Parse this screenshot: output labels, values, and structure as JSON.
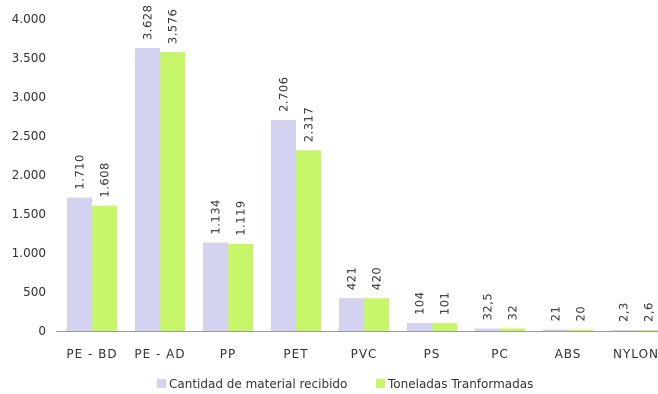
{
  "chart_data": {
    "type": "bar",
    "categories": [
      "PE - BD",
      "PE - AD",
      "PP",
      "PET",
      "PVC",
      "PS",
      "PC",
      "ABS",
      "NYLON"
    ],
    "series": [
      {
        "name": "Cantidad de material recibido",
        "values": [
          1710,
          3628,
          1134,
          2706,
          421,
          104,
          32.5,
          21,
          2.3
        ],
        "labels": [
          "1.710",
          "3.628",
          "1.134",
          "2.706",
          "421",
          "104",
          "32,5",
          "21",
          "2,3"
        ],
        "color": "#D3D3F1"
      },
      {
        "name": "Toneladas Tranformadas",
        "values": [
          1608,
          3576,
          1119,
          2317,
          420,
          101,
          32,
          20,
          2.6
        ],
        "labels": [
          "1.608",
          "3.576",
          "1.119",
          "2.317",
          "420",
          "101",
          "32",
          "20",
          "2,6"
        ],
        "color": "#C8F66A"
      }
    ],
    "y_ticks": [
      0,
      500,
      1000,
      1500,
      2000,
      2500,
      3000,
      3500,
      4000
    ],
    "y_tick_labels": [
      "0",
      "500",
      "1.000",
      "1.500",
      "2.000",
      "2.500",
      "3.000",
      "3.500",
      "4.000"
    ],
    "ylim": [
      0,
      4000
    ],
    "grid": false,
    "legend_position": "bottom",
    "title": "",
    "xlabel": "",
    "ylabel": ""
  }
}
